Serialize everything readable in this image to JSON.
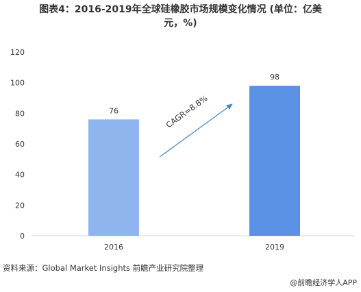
{
  "title_line1": "图表4：2016-2019年全球硅橡胶市场规模变化情况 (单位：亿美",
  "title_line2": "元，%)",
  "source": "资料来源：Global Market Insights 前瞻产业研究院整理",
  "brand": "@前瞻经济学人APP",
  "colors": {
    "bar_2016": "#8fb5ee",
    "bar_2019": "#5b92e5",
    "arrow": "#4a86c6",
    "grid": "#d9d9d9",
    "axis_text": "#333333"
  },
  "chart_data": {
    "type": "bar",
    "categories": [
      "2016",
      "2019"
    ],
    "values": [
      76,
      98
    ],
    "data_labels": [
      "76",
      "98"
    ],
    "ylim": [
      0,
      120
    ],
    "yticks": [
      0,
      20,
      40,
      60,
      80,
      100,
      120
    ],
    "grid": false,
    "annotation": "CAGR=8.8%"
  }
}
